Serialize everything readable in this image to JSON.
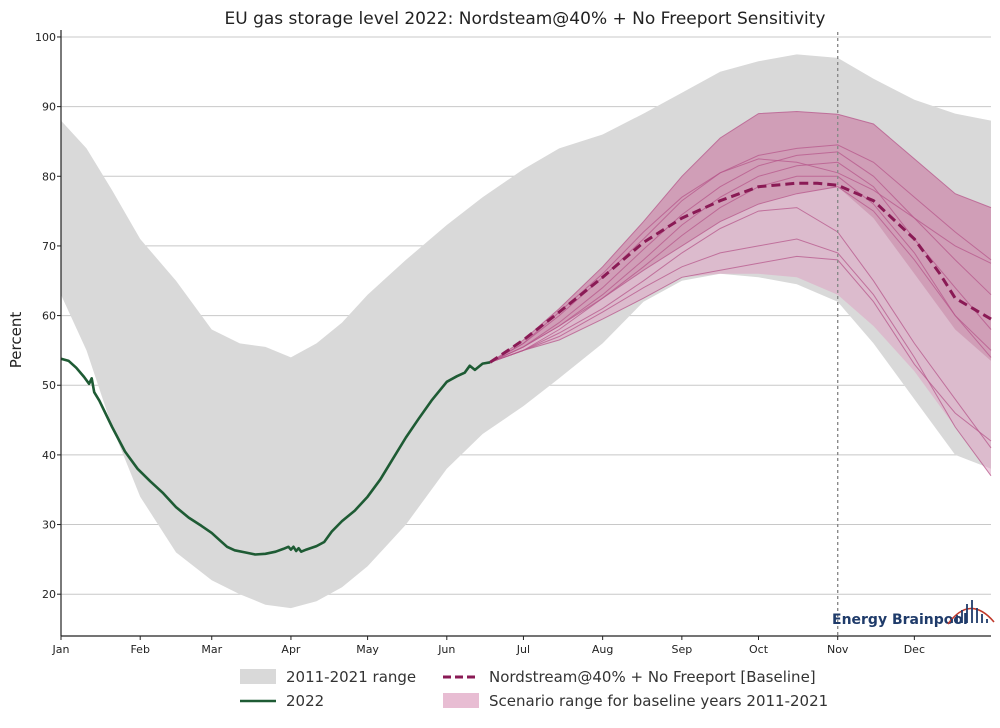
{
  "chart_data": {
    "type": "area",
    "title": "EU gas storage level 2022: Nordsteam@40% + No Freeport Sensitivity",
    "ylabel": "Percent",
    "xlabel": "",
    "ylim": [
      14,
      101
    ],
    "yticks": [
      20,
      30,
      40,
      50,
      60,
      70,
      80,
      90,
      100
    ],
    "xlim": [
      0,
      364
    ],
    "months": [
      {
        "label": "Jan",
        "day": 0
      },
      {
        "label": "Feb",
        "day": 31
      },
      {
        "label": "Mar",
        "day": 59
      },
      {
        "label": "Apr",
        "day": 90
      },
      {
        "label": "May",
        "day": 120
      },
      {
        "label": "Jun",
        "day": 151
      },
      {
        "label": "Jul",
        "day": 181
      },
      {
        "label": "Aug",
        "day": 212
      },
      {
        "label": "Sep",
        "day": 243
      },
      {
        "label": "Oct",
        "day": 273
      },
      {
        "label": "Nov",
        "day": 304
      },
      {
        "label": "Dec",
        "day": 334
      }
    ],
    "vline_day": 304,
    "grid": true,
    "legend_position": "bottom",
    "series": [
      {
        "name": "2011-2021 range",
        "kind": "band",
        "color": "#d9d9d9",
        "x": [
          0,
          10,
          20,
          31,
          45,
          59,
          70,
          80,
          90,
          100,
          110,
          120,
          135,
          151,
          165,
          181,
          195,
          212,
          228,
          243,
          258,
          273,
          288,
          304,
          318,
          334,
          350,
          364
        ],
        "upper": [
          88,
          84,
          78,
          71,
          65,
          58,
          56,
          55.5,
          54,
          56,
          59,
          63,
          68,
          73,
          77,
          81,
          84,
          86,
          89,
          92,
          95,
          96.5,
          97.5,
          97,
          94,
          91,
          89,
          88
        ],
        "lower": [
          63,
          55,
          44,
          34,
          26,
          22,
          20,
          18.5,
          18,
          19,
          21,
          24,
          30,
          38,
          43,
          47,
          51,
          56,
          62,
          65,
          66,
          65.5,
          64.5,
          62,
          56,
          48,
          40,
          38
        ]
      },
      {
        "name": "2022",
        "kind": "line",
        "color": "#1e5b34",
        "x": [
          0,
          3,
          6,
          9,
          11,
          12,
          13,
          15,
          20,
          25,
          30,
          35,
          40,
          45,
          50,
          55,
          59,
          62,
          65,
          68,
          72,
          76,
          80,
          84,
          87,
          89,
          90,
          91,
          92,
          93,
          94,
          96,
          100,
          103,
          106,
          110,
          115,
          120,
          125,
          130,
          135,
          140,
          145,
          151,
          155,
          158,
          160,
          162,
          165,
          168
        ],
        "y": [
          53.8,
          53.5,
          52.5,
          51.2,
          50.2,
          51,
          49,
          47.8,
          44,
          40.5,
          38,
          36.2,
          34.5,
          32.5,
          31,
          29.8,
          28.8,
          27.8,
          26.8,
          26.3,
          26,
          25.7,
          25.8,
          26.1,
          26.5,
          26.8,
          26.4,
          26.8,
          26.2,
          26.6,
          26.1,
          26.4,
          26.9,
          27.5,
          29,
          30.5,
          32,
          34,
          36.5,
          39.5,
          42.5,
          45.2,
          47.8,
          50.5,
          51.3,
          51.8,
          52.8,
          52.2,
          53.1,
          53.3
        ]
      },
      {
        "name": "Scenario range for baseline years 2011-2021",
        "kind": "band",
        "color": "#dfa3c3",
        "x": [
          168,
          181,
          195,
          212,
          228,
          243,
          258,
          273,
          288,
          304,
          318,
          334,
          350,
          364
        ],
        "upper": [
          53.3,
          56.5,
          61,
          67,
          73.5,
          80,
          85.5,
          89,
          89.3,
          88.9,
          87.5,
          82.5,
          77.5,
          75.5
        ],
        "lower": [
          53.3,
          55,
          56.5,
          59.5,
          62.5,
          65.5,
          66,
          66,
          65.5,
          63,
          58.5,
          52,
          44,
          37
        ]
      },
      {
        "name": "Scenario inner range",
        "kind": "band",
        "color": "#c686a6",
        "x": [
          168,
          181,
          195,
          212,
          228,
          243,
          258,
          273,
          288,
          304,
          318,
          334,
          350,
          364
        ],
        "upper": [
          53.3,
          56.5,
          61,
          67,
          73.5,
          80,
          85.5,
          89,
          89.3,
          88.9,
          87.5,
          82.5,
          77.5,
          75.5
        ],
        "lower": [
          53.3,
          55.5,
          58.5,
          62.5,
          66.5,
          70,
          73.5,
          76,
          77.5,
          78.5,
          74,
          66,
          58,
          53.5
        ]
      },
      {
        "name": "Scenario years",
        "kind": "multiline",
        "color": "#b7578b",
        "x": [
          168,
          181,
          195,
          212,
          228,
          243,
          258,
          273,
          288,
          304,
          318,
          334,
          350,
          364
        ],
        "lines": [
          [
            53.3,
            56.5,
            61,
            67,
            73.5,
            80,
            85.5,
            89,
            89.3,
            88.9,
            87.5,
            82.5,
            77.5,
            75.5
          ],
          [
            53.3,
            56,
            60,
            65.5,
            71,
            76.5,
            80.5,
            83,
            84,
            84.5,
            82,
            77,
            72,
            68
          ],
          [
            53.3,
            55.5,
            59,
            64,
            69.5,
            74.5,
            78.5,
            81.5,
            83,
            83.5,
            80,
            74,
            68,
            63
          ],
          [
            53.3,
            56,
            60.5,
            66,
            72,
            77,
            80.5,
            82.5,
            82,
            80.5,
            78,
            74,
            70,
            67.5
          ],
          [
            53.3,
            55.5,
            58.5,
            63,
            68,
            73,
            77,
            80,
            81.5,
            82,
            78.5,
            71,
            64,
            58
          ],
          [
            53.3,
            55,
            58,
            62.5,
            67,
            71.5,
            75.5,
            78.5,
            80,
            80,
            76,
            69,
            60,
            54
          ],
          [
            53.3,
            55.5,
            58.5,
            62.5,
            66.5,
            70,
            73.5,
            76,
            77.5,
            78.5,
            75,
            68,
            60,
            55
          ],
          [
            53.3,
            55,
            57.5,
            61,
            65,
            69,
            72.5,
            75,
            75.5,
            72,
            65,
            56,
            48,
            41
          ],
          [
            53.3,
            55,
            56.5,
            59.5,
            62.5,
            65.5,
            66.5,
            67.5,
            68.5,
            68,
            62,
            53,
            46,
            42
          ],
          [
            53.3,
            55,
            57,
            60.5,
            64,
            67,
            69,
            70,
            71,
            69,
            63,
            54,
            44,
            37
          ]
        ]
      },
      {
        "name": "Nordstream@40% + No Freeport  [Baseline]",
        "kind": "dashed",
        "color": "#8a1a55",
        "x": [
          168,
          181,
          195,
          212,
          228,
          243,
          258,
          273,
          288,
          296,
          304,
          318,
          334,
          344,
          350,
          357,
          364
        ],
        "y": [
          53.3,
          56.5,
          60.5,
          65.5,
          70.5,
          74,
          76.5,
          78.5,
          79,
          79,
          78.7,
          76.5,
          71,
          66,
          62.5,
          61,
          59.5
        ]
      }
    ],
    "legend": [
      {
        "label": "2011-2021 range",
        "kind": "patch",
        "color": "#d9d9d9"
      },
      {
        "label": "Nordstream@40% + No Freeport  [Baseline]",
        "kind": "dashed",
        "color": "#8a1a55"
      },
      {
        "label": "2022",
        "kind": "line",
        "color": "#1e5b34"
      },
      {
        "label": "Scenario range for baseline years 2011-2021",
        "kind": "patch",
        "color": "#e8bdd3"
      }
    ]
  },
  "branding": {
    "text": "Energy Brainpool",
    "logo_icon": "brainpool-logo-icon",
    "color": "#1f3b6a",
    "accent": "#c0392b"
  }
}
